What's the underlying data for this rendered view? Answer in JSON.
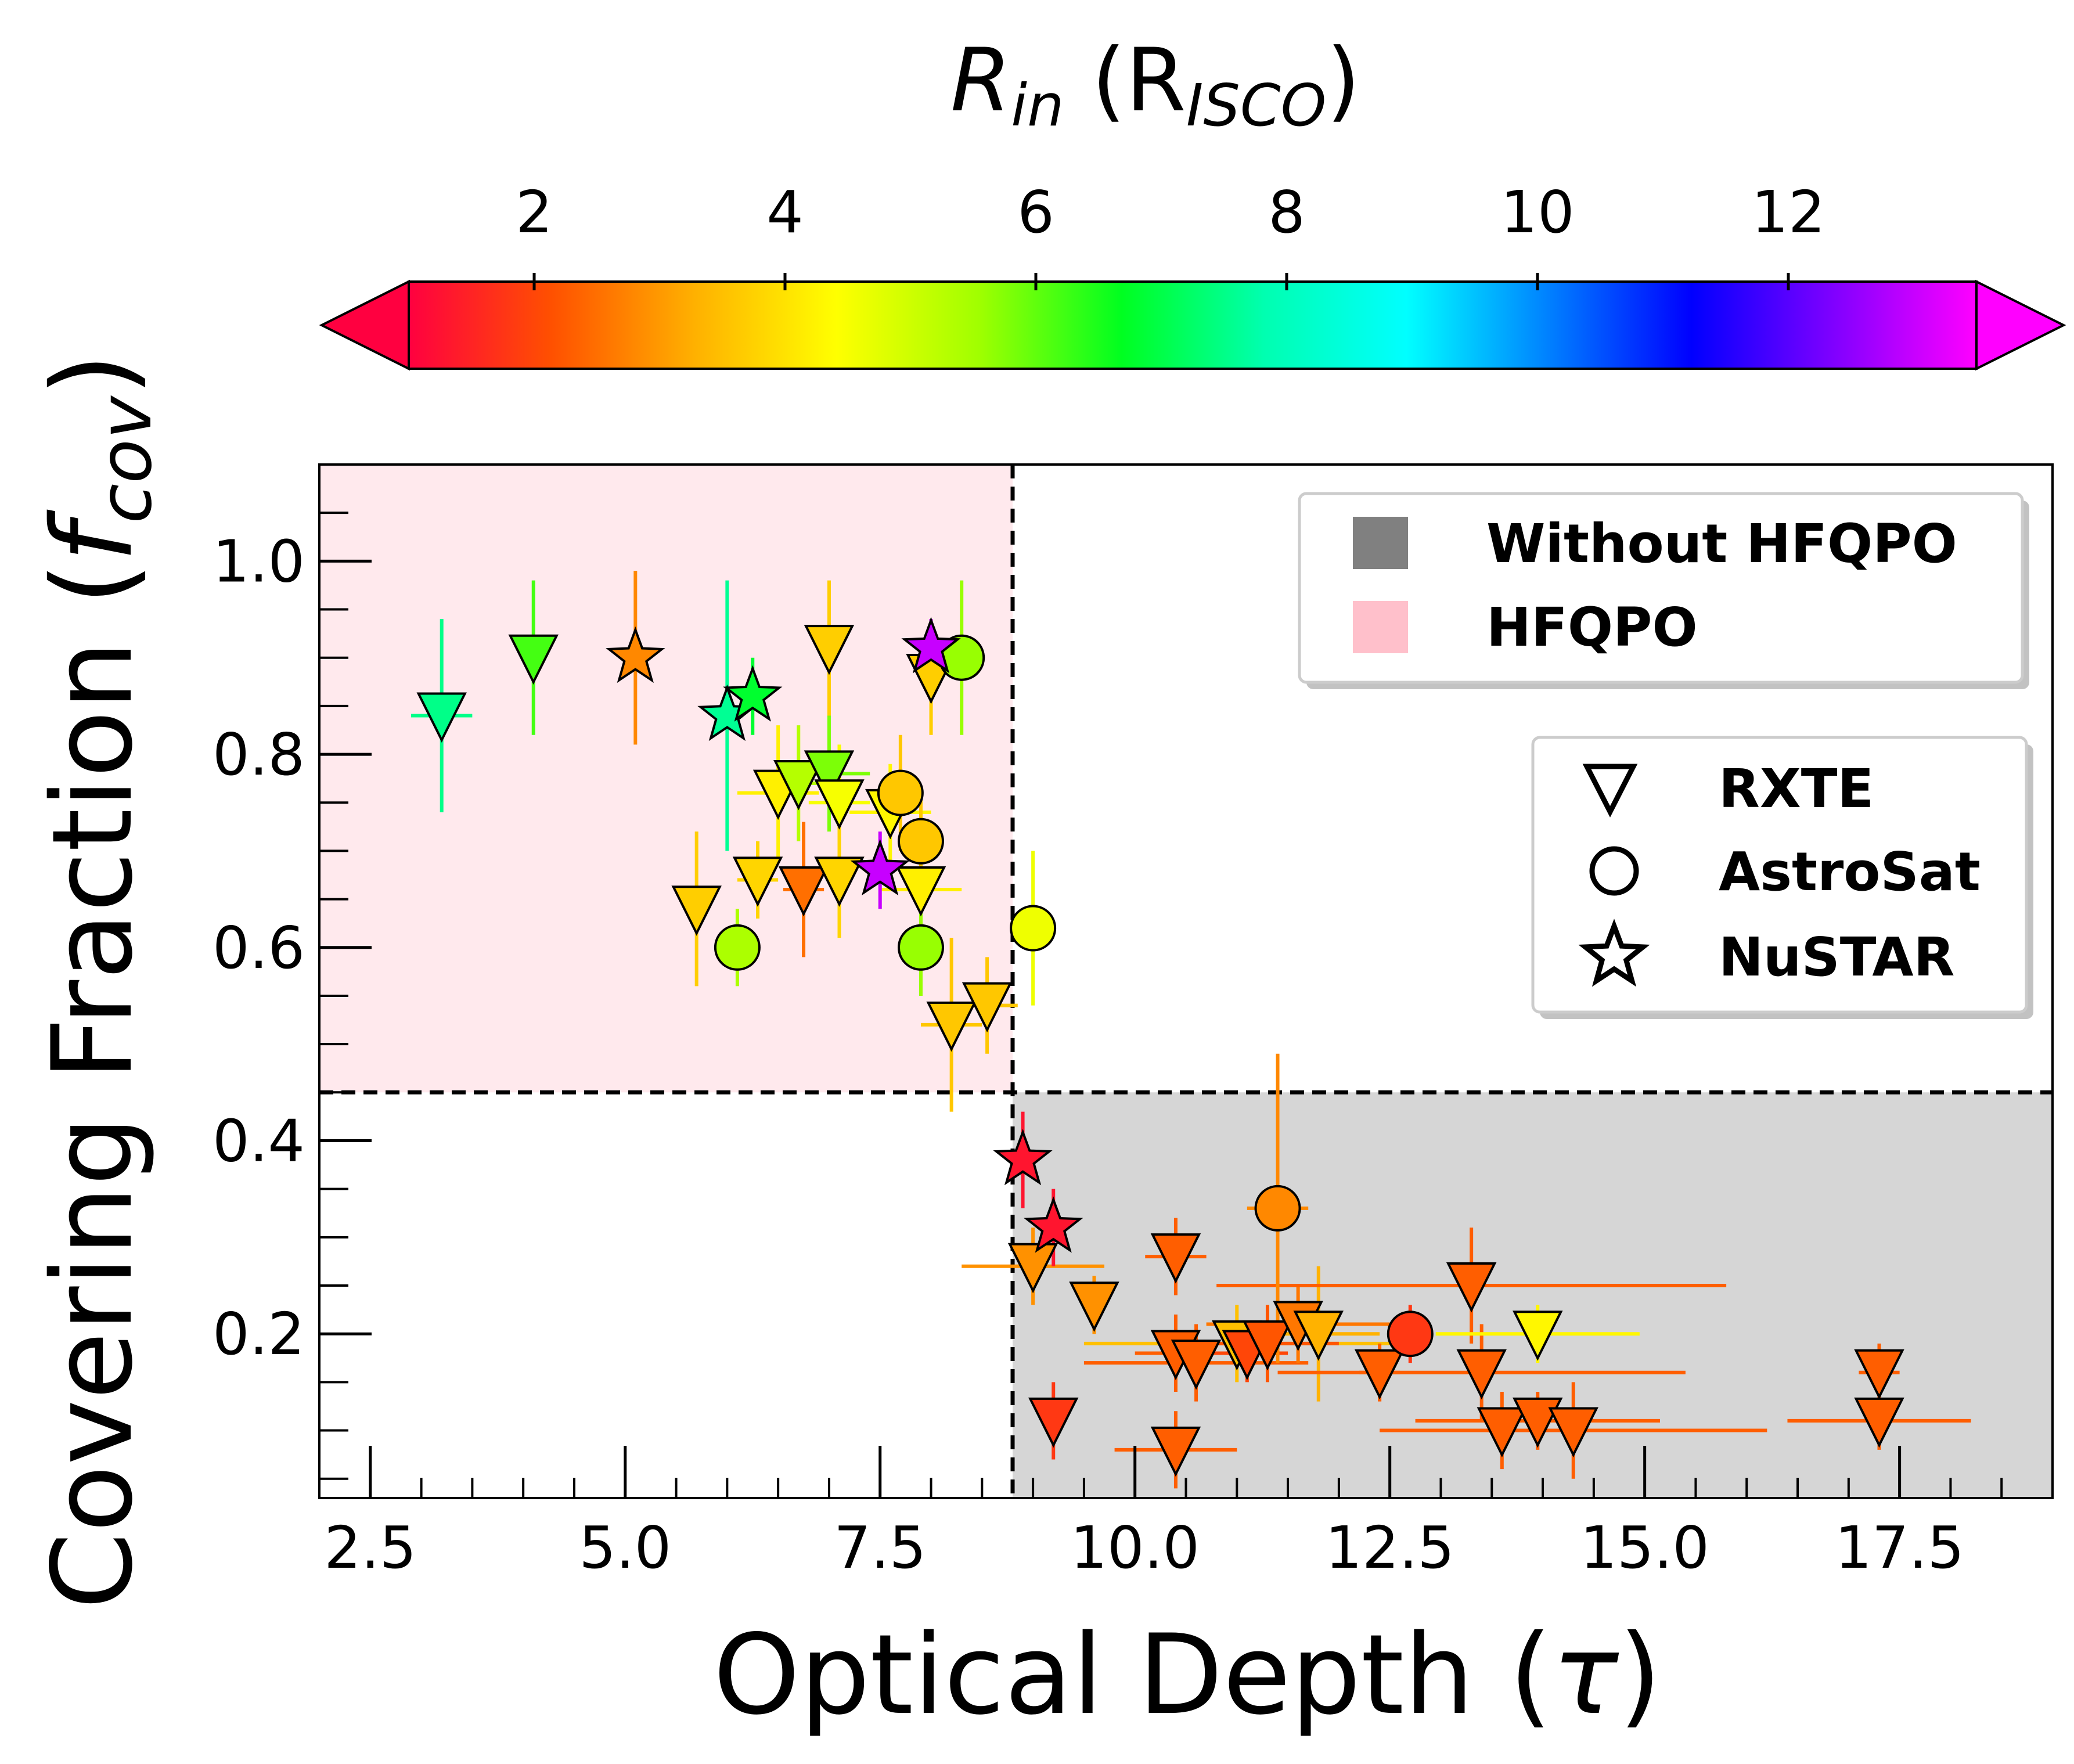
{
  "chart_data": {
    "type": "scatter",
    "xlabel": {
      "main": "Optical Depth (",
      "symbol": "τ",
      "close": ")"
    },
    "ylabel": {
      "main": "Covering Fraction (",
      "symbol": "f",
      "sub": "cov",
      "close": ")"
    },
    "xlim": [
      2.0,
      19.0
    ],
    "ylim": [
      0.03,
      1.1
    ],
    "xticks": [
      2.5,
      5.0,
      7.5,
      10.0,
      12.5,
      15.0,
      17.5
    ],
    "xtick_labels": [
      "2.5",
      "5.0",
      "7.5",
      "10.0",
      "12.5",
      "15.0",
      "17.5"
    ],
    "yticks": [
      0.2,
      0.4,
      0.6,
      0.8,
      1.0
    ],
    "ytick_labels": [
      "0.2",
      "0.4",
      "0.6",
      "0.8",
      "1.0"
    ],
    "x_threshold": 8.8,
    "y_threshold": 0.45,
    "colorbar": {
      "label": {
        "main": "R",
        "sub": "in",
        "open": " (R",
        "sub2": "ISCO",
        "close": ")"
      },
      "vmin": 1.0,
      "vmax": 13.5,
      "ticks": [
        2,
        4,
        6,
        8,
        10,
        12
      ],
      "tick_labels": [
        "2",
        "4",
        "6",
        "8",
        "10",
        "12"
      ],
      "stops": [
        "#ff0040",
        "#ff5000",
        "#ffb000",
        "#ffff00",
        "#a0ff00",
        "#00ff20",
        "#00ffb0",
        "#00ffff",
        "#0080ff",
        "#0000ff",
        "#8000ff",
        "#ff00ff"
      ]
    },
    "regions": [
      {
        "name": "HFQPO",
        "color": "#ffc0cb"
      },
      {
        "name": "Without HFQPO",
        "color": "#808080"
      }
    ],
    "legend_regions": [
      "Without HFQPO",
      "HFQPO"
    ],
    "legend_markers": [
      {
        "marker": "triangle",
        "label": "RXTE"
      },
      {
        "marker": "circle",
        "label": "AstroSat"
      },
      {
        "marker": "star",
        "label": "NuSTAR"
      }
    ],
    "points": [
      {
        "x": 3.2,
        "y": 0.84,
        "xerr": 0.3,
        "yerr": 0.1,
        "rin": 7.5,
        "m": "tri"
      },
      {
        "x": 4.1,
        "y": 0.9,
        "xerr": 0.0,
        "yerr": 0.08,
        "rin": 6.2,
        "m": "tri"
      },
      {
        "x": 5.7,
        "y": 0.64,
        "xerr": 0.0,
        "yerr": 0.08,
        "rin": 3.7,
        "m": "tri"
      },
      {
        "x": 6.3,
        "y": 0.67,
        "xerr": 0.2,
        "yerr": 0.04,
        "rin": 3.8,
        "m": "tri"
      },
      {
        "x": 6.5,
        "y": 0.76,
        "xerr": 0.4,
        "yerr": 0.07,
        "rin": 4.2,
        "m": "tri"
      },
      {
        "x": 6.7,
        "y": 0.77,
        "xerr": 0.3,
        "yerr": 0.06,
        "rin": 5.3,
        "m": "tri"
      },
      {
        "x": 6.75,
        "y": 0.66,
        "xerr": 0.2,
        "yerr": 0.07,
        "rin": 2.5,
        "m": "tri"
      },
      {
        "x": 7.0,
        "y": 0.91,
        "xerr": 0.0,
        "yerr": 0.07,
        "rin": 3.7,
        "m": "tri"
      },
      {
        "x": 7.0,
        "y": 0.78,
        "xerr": 0.4,
        "yerr": 0.06,
        "rin": 5.8,
        "m": "tri"
      },
      {
        "x": 7.1,
        "y": 0.75,
        "xerr": 0.3,
        "yerr": 0.06,
        "rin": 4.5,
        "m": "tri"
      },
      {
        "x": 7.1,
        "y": 0.67,
        "xerr": 0.0,
        "yerr": 0.06,
        "rin": 3.8,
        "m": "tri"
      },
      {
        "x": 7.6,
        "y": 0.74,
        "xerr": 0.4,
        "yerr": 0.05,
        "rin": 4.3,
        "m": "tri"
      },
      {
        "x": 7.9,
        "y": 0.66,
        "xerr": 0.4,
        "yerr": 0.06,
        "rin": 4.2,
        "m": "tri"
      },
      {
        "x": 8.0,
        "y": 0.88,
        "xerr": 0.0,
        "yerr": 0.06,
        "rin": 3.7,
        "m": "tri"
      },
      {
        "x": 8.2,
        "y": 0.52,
        "xerr": 0.3,
        "yerr": 0.09,
        "rin": 3.6,
        "m": "tri"
      },
      {
        "x": 8.55,
        "y": 0.54,
        "xerr": 0.3,
        "yerr": 0.05,
        "rin": 3.6,
        "m": "tri"
      },
      {
        "x": 9.0,
        "y": 0.27,
        "xerr": 0.7,
        "yerr": 0.04,
        "rin": 2.9,
        "m": "tri"
      },
      {
        "x": 9.2,
        "y": 0.11,
        "xerr": 0.0,
        "yerr": 0.04,
        "rin": 1.8,
        "m": "tri"
      },
      {
        "x": 9.6,
        "y": 0.23,
        "xerr": 0.0,
        "yerr": 0.03,
        "rin": 2.9,
        "m": "tri"
      },
      {
        "x": 10.4,
        "y": 0.28,
        "xerr": 0.3,
        "yerr": 0.04,
        "rin": 2.3,
        "m": "tri"
      },
      {
        "x": 10.4,
        "y": 0.08,
        "xerr": 0.6,
        "yerr": 0.04,
        "rin": 2.3,
        "m": "tri"
      },
      {
        "x": 10.4,
        "y": 0.18,
        "xerr": 0.4,
        "yerr": 0.04,
        "rin": 2.3,
        "m": "tri"
      },
      {
        "x": 10.6,
        "y": 0.17,
        "xerr": 1.1,
        "yerr": 0.04,
        "rin": 2.3,
        "m": "tri"
      },
      {
        "x": 11.0,
        "y": 0.19,
        "xerr": 1.5,
        "yerr": 0.04,
        "rin": 3.5,
        "m": "tri"
      },
      {
        "x": 11.1,
        "y": 0.18,
        "xerr": 0.4,
        "yerr": 0.03,
        "rin": 2.0,
        "m": "tri"
      },
      {
        "x": 11.3,
        "y": 0.19,
        "xerr": 0.7,
        "yerr": 0.04,
        "rin": 2.2,
        "m": "tri"
      },
      {
        "x": 11.6,
        "y": 0.21,
        "xerr": 0.9,
        "yerr": 0.04,
        "rin": 2.6,
        "m": "tri"
      },
      {
        "x": 11.8,
        "y": 0.2,
        "xerr": 0.6,
        "yerr": 0.07,
        "rin": 3.3,
        "m": "tri"
      },
      {
        "x": 12.4,
        "y": 0.16,
        "xerr": 0.2,
        "yerr": 0.03,
        "rin": 2.3,
        "m": "tri"
      },
      {
        "x": 13.3,
        "y": 0.25,
        "xerr": 2.5,
        "yerr": 0.06,
        "rin": 2.3,
        "m": "tri"
      },
      {
        "x": 13.4,
        "y": 0.16,
        "xerr": 2.0,
        "yerr": 0.05,
        "rin": 2.3,
        "m": "tri"
      },
      {
        "x": 13.6,
        "y": 0.1,
        "xerr": 0.8,
        "yerr": 0.04,
        "rin": 2.3,
        "m": "tri"
      },
      {
        "x": 13.95,
        "y": 0.2,
        "xerr": 1.0,
        "yerr": 0.03,
        "rin": 4.3,
        "m": "tri"
      },
      {
        "x": 13.95,
        "y": 0.11,
        "xerr": 1.2,
        "yerr": 0.03,
        "rin": 2.3,
        "m": "tri"
      },
      {
        "x": 14.3,
        "y": 0.1,
        "xerr": 1.9,
        "yerr": 0.05,
        "rin": 2.3,
        "m": "tri"
      },
      {
        "x": 17.3,
        "y": 0.16,
        "xerr": 0.2,
        "yerr": 0.03,
        "rin": 2.3,
        "m": "tri"
      },
      {
        "x": 17.3,
        "y": 0.11,
        "xerr": 0.9,
        "yerr": 0.03,
        "rin": 2.3,
        "m": "tri"
      },
      {
        "x": 6.1,
        "y": 0.6,
        "xerr": 0.0,
        "yerr": 0.04,
        "rin": 5.4,
        "m": "circ"
      },
      {
        "x": 7.7,
        "y": 0.76,
        "xerr": 0.0,
        "yerr": 0.06,
        "rin": 3.6,
        "m": "circ"
      },
      {
        "x": 7.9,
        "y": 0.71,
        "xerr": 0.0,
        "yerr": 0.05,
        "rin": 3.6,
        "m": "circ"
      },
      {
        "x": 7.9,
        "y": 0.6,
        "xerr": 0.0,
        "yerr": 0.05,
        "rin": 5.6,
        "m": "circ"
      },
      {
        "x": 8.3,
        "y": 0.9,
        "xerr": 0.0,
        "yerr": 0.08,
        "rin": 5.6,
        "m": "circ"
      },
      {
        "x": 9.0,
        "y": 0.62,
        "xerr": 0.0,
        "yerr": 0.08,
        "rin": 4.6,
        "m": "circ"
      },
      {
        "x": 11.4,
        "y": 0.33,
        "xerr": 0.3,
        "yerr": 0.16,
        "rin": 2.8,
        "m": "circ"
      },
      {
        "x": 12.7,
        "y": 0.2,
        "xerr": 0.0,
        "yerr": 0.03,
        "rin": 1.8,
        "m": "circ"
      },
      {
        "x": 5.1,
        "y": 0.9,
        "xerr": 0.0,
        "yerr": 0.09,
        "rin": 2.8,
        "m": "star"
      },
      {
        "x": 6.0,
        "y": 0.84,
        "xerr": 0.0,
        "yerr": 0.14,
        "rin": 7.6,
        "m": "star"
      },
      {
        "x": 6.25,
        "y": 0.86,
        "xerr": 0.0,
        "yerr": 0.04,
        "rin": 6.8,
        "m": "star"
      },
      {
        "x": 7.5,
        "y": 0.68,
        "xerr": 0.0,
        "yerr": 0.04,
        "rin": 13.0,
        "m": "star"
      },
      {
        "x": 8.0,
        "y": 0.91,
        "xerr": 0.0,
        "yerr": 0.03,
        "rin": 13.0,
        "m": "star"
      },
      {
        "x": 8.9,
        "y": 0.38,
        "xerr": 0.0,
        "yerr": 0.05,
        "rin": 1.3,
        "m": "star"
      },
      {
        "x": 9.2,
        "y": 0.31,
        "xerr": 0.0,
        "yerr": 0.04,
        "rin": 1.3,
        "m": "star"
      }
    ]
  }
}
